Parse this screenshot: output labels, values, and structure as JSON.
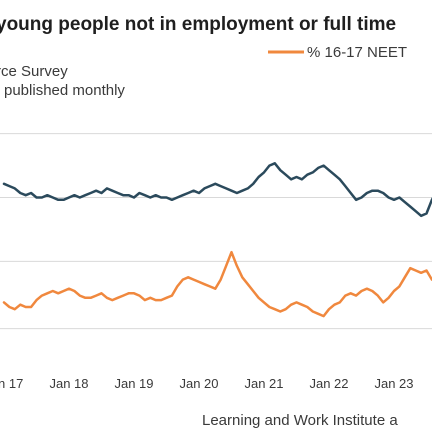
{
  "chart_data": {
    "type": "line",
    "title": "young people not in employment or full time",
    "subtitle_lines": [
      "rce Survey",
      "published monthly"
    ],
    "source": "Learning and Work Institute a",
    "legend": [
      {
        "name": "% 16-17 NEET",
        "color": "#f0883e"
      }
    ],
    "x_ticks": [
      "n 17",
      "Jan 18",
      "Jan 19",
      "Jan 20",
      "Jan 21",
      "Jan 22",
      "Jan 23"
    ],
    "x_range": [
      0,
      82
    ],
    "tick_positions": [
      0,
      12,
      24,
      36,
      48,
      60,
      72
    ],
    "ylim": [
      0,
      10
    ],
    "gridlines": [
      0.85,
      3.8,
      6.6,
      9.4
    ],
    "series": [
      {
        "color": "#2b4a5c",
        "values": [
          7.2,
          7.1,
          7.0,
          6.8,
          6.7,
          6.8,
          6.6,
          6.6,
          6.7,
          6.6,
          6.5,
          6.5,
          6.6,
          6.7,
          6.6,
          6.7,
          6.8,
          6.9,
          6.8,
          7.0,
          6.9,
          6.8,
          6.7,
          6.7,
          6.6,
          6.8,
          6.7,
          6.6,
          6.7,
          6.6,
          6.6,
          6.5,
          6.6,
          6.7,
          6.8,
          6.9,
          6.8,
          7.0,
          7.1,
          7.2,
          7.1,
          7.0,
          6.9,
          6.8,
          6.9,
          7.0,
          7.2,
          7.5,
          7.7,
          8.0,
          8.1,
          7.8,
          7.6,
          7.4,
          7.5,
          7.4,
          7.6,
          7.7,
          7.9,
          8.0,
          7.8,
          7.6,
          7.4,
          7.1,
          6.8,
          6.5,
          6.6,
          6.8,
          6.9,
          6.9,
          6.8,
          6.6,
          6.5,
          6.6,
          6.4,
          6.2,
          6.0,
          5.8,
          5.9,
          6.5,
          6.9,
          6.8,
          7.2,
          7.3,
          7.3,
          7.6,
          7.4,
          7.5,
          7.4,
          7.5,
          8.3
        ]
      },
      {
        "color": "#f0883e",
        "values": [
          2.0,
          1.8,
          1.7,
          1.9,
          1.8,
          1.8,
          2.1,
          2.3,
          2.4,
          2.5,
          2.4,
          2.5,
          2.6,
          2.5,
          2.3,
          2.2,
          2.2,
          2.3,
          2.4,
          2.2,
          2.1,
          2.2,
          2.3,
          2.4,
          2.4,
          2.3,
          2.1,
          2.2,
          2.1,
          2.1,
          2.2,
          2.3,
          2.7,
          3.0,
          3.1,
          3.0,
          2.9,
          2.8,
          2.7,
          2.6,
          3.0,
          3.6,
          4.2,
          3.6,
          3.1,
          2.8,
          2.5,
          2.2,
          2.0,
          1.8,
          1.7,
          1.6,
          1.7,
          1.9,
          2.0,
          1.9,
          1.8,
          1.6,
          1.5,
          1.4,
          1.7,
          1.9,
          2.0,
          2.3,
          2.4,
          2.3,
          2.5,
          2.6,
          2.5,
          2.3,
          2.0,
          2.2,
          2.5,
          2.7,
          3.1,
          3.5,
          3.4,
          3.3,
          3.4,
          3.0,
          2.9,
          3.0,
          2.8,
          2.9,
          2.8,
          2.7,
          2.9,
          2.8,
          2.8,
          2.6,
          2.8
        ]
      }
    ]
  }
}
